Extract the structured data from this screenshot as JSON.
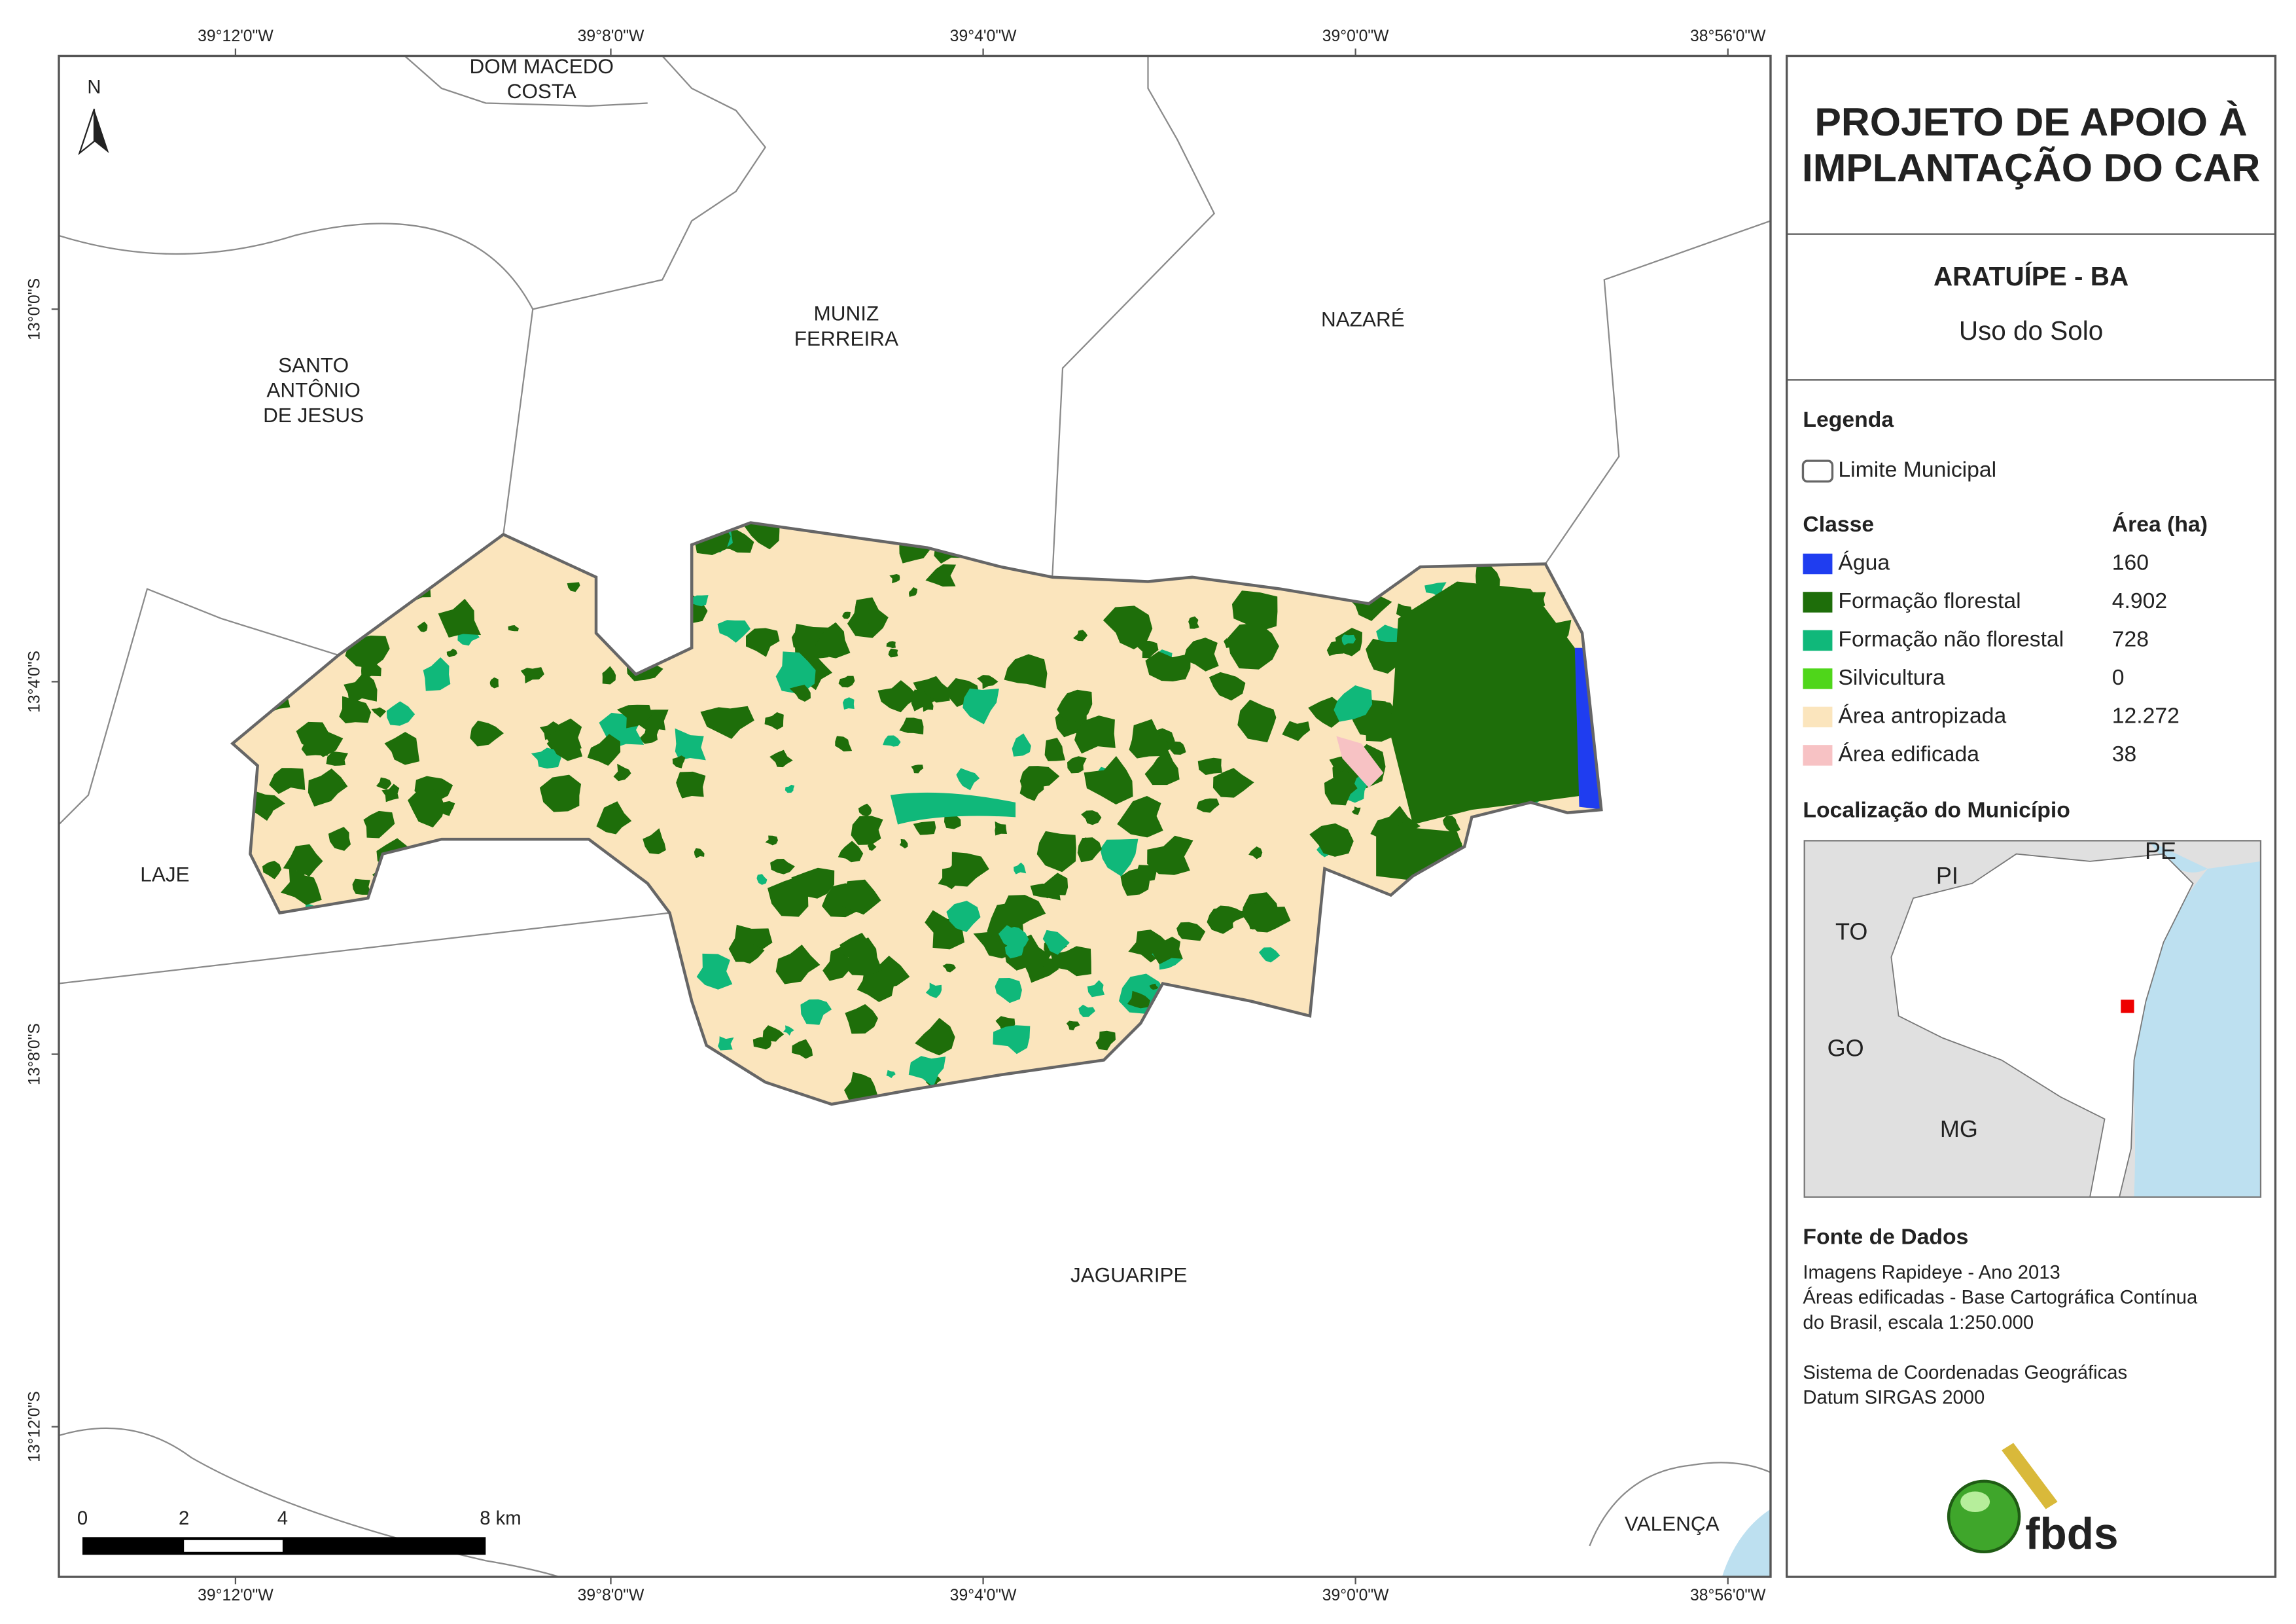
{
  "map": {
    "top_coords": [
      "39°12'0\"W",
      "39°8'0\"W",
      "39°4'0\"W",
      "39°0'0\"W",
      "38°56'0\"W"
    ],
    "bottom_coords": [
      "39°12'0\"W",
      "39°8'0\"W",
      "39°4'0\"W",
      "39°0'0\"W",
      "38°56'0\"W"
    ],
    "left_coords": [
      "13°0'0\"S",
      "13°4'0\"S",
      "13°8'0\"S",
      "13°12'0\"S"
    ],
    "north": "N",
    "places": [
      [
        "DOM MACEDO",
        "COSTA"
      ],
      [
        "MUNIZ",
        "FERREIRA"
      ],
      [
        "NAZARÉ"
      ],
      [
        "SANTO",
        "ANTÔNIO",
        "DE JESUS"
      ],
      [
        "LAJE"
      ],
      [
        "JAGUARIPE"
      ],
      [
        "VALENÇA"
      ]
    ],
    "scale_bar": [
      "0",
      "2",
      "4",
      "8 km"
    ]
  },
  "panel": {
    "title": [
      "PROJETO DE APOIO À",
      "IMPLANTAÇÃO DO CAR"
    ],
    "municipality": "ARATUÍPE - BA",
    "subtitle": "Uso do Solo",
    "legend_title": "Legenda",
    "boundary": "Limite Municipal",
    "class_header": "Classe",
    "area_header": "Área (ha)",
    "classes": [
      {
        "name": "Água",
        "area": "160",
        "color": "#1f3df0"
      },
      {
        "name": "Formação florestal",
        "area": "4.902",
        "color": "#1e6e0a"
      },
      {
        "name": "Formação não florestal",
        "area": "728",
        "color": "#10b87a"
      },
      {
        "name": "Silvicultura",
        "area": "0",
        "color": "#4fd61a"
      },
      {
        "name": "Área antropizada",
        "area": "12.272",
        "color": "#fbe5bd"
      },
      {
        "name": "Área edificada",
        "area": "38",
        "color": "#f7c2c4"
      }
    ],
    "locator_title": "Localização do Município",
    "locator_labels": [
      "PI",
      "PE",
      "TO",
      "GO",
      "MG"
    ],
    "source_title": "Fonte de Dados",
    "source_lines": [
      "Imagens Rapideye - Ano 2013",
      "Áreas edificadas - Base Cartográfica Contínua",
      "do Brasil, escala 1:250.000",
      "Sistema de Coordenadas Geográficas",
      "Datum SIRGAS 2000"
    ],
    "logo": "fbds"
  }
}
